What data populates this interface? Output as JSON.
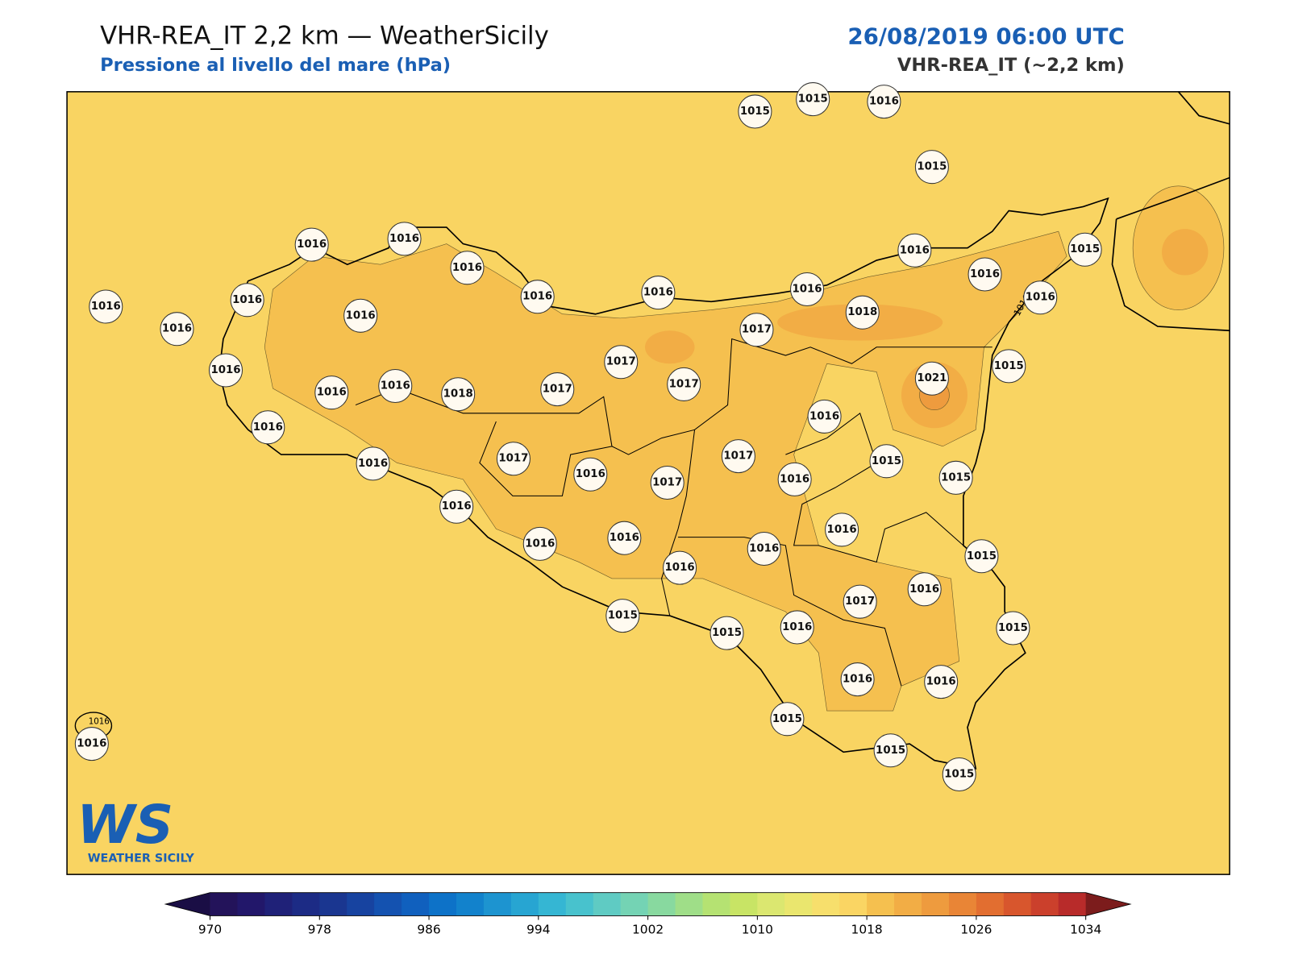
{
  "header": {
    "title": "VHR-REA_IT 2,2 km — WeatherSicily",
    "subtitle": "Pressione al livello del mare (hPa)",
    "datetime": "26/08/2019 06:00 UTC",
    "model": "VHR-REA_IT (~2,2 km)"
  },
  "stations": [
    1015,
    1015,
    1016,
    1015,
    1016,
    1016,
    1016,
    1016,
    1016,
    1016,
    1016,
    1016,
    1015,
    1016,
    1016,
    1016,
    1016,
    1016,
    1017,
    1018,
    1017,
    1015,
    1016,
    1016,
    1016,
    1018,
    1017,
    1017,
    1021,
    1016,
    1016,
    1016,
    1017,
    1016,
    1017,
    1017,
    1016,
    1015,
    1015,
    1016,
    1016,
    1016,
    1016,
    1016,
    1016,
    1015,
    1016,
    1017,
    1015,
    1015,
    1016,
    1015,
    1016,
    1016,
    1015,
    1015,
    1015,
    1016
  ],
  "contour_labels": [
    "1016",
    "1016"
  ],
  "logo": {
    "mark": "WS",
    "text": "WEATHER SICILY"
  },
  "colorbar": {
    "range": [
      970,
      1034
    ],
    "ticks": [
      970,
      978,
      986,
      994,
      1002,
      1010,
      1018,
      1026,
      1034
    ],
    "colors": [
      "#23135a",
      "#22176a",
      "#1f2178",
      "#1c2b85",
      "#1a3690",
      "#1743a0",
      "#1452b0",
      "#1060be",
      "#0d72c8",
      "#1282cc",
      "#1d94d0",
      "#27a5d2",
      "#35b6d3",
      "#48c2cd",
      "#5fcbc3",
      "#74d3b4",
      "#88d99f",
      "#9fde88",
      "#b5e272",
      "#c8e465",
      "#dbe770",
      "#eae66e",
      "#f7df6c",
      "#fad563",
      "#f5c04f",
      "#f2ad45",
      "#ee9b3e",
      "#e98536",
      "#e26e30",
      "#d8562d",
      "#cb402c",
      "#b82b2a"
    ],
    "under_color": "#1a0e45",
    "over_color": "#7c1c1c"
  }
}
